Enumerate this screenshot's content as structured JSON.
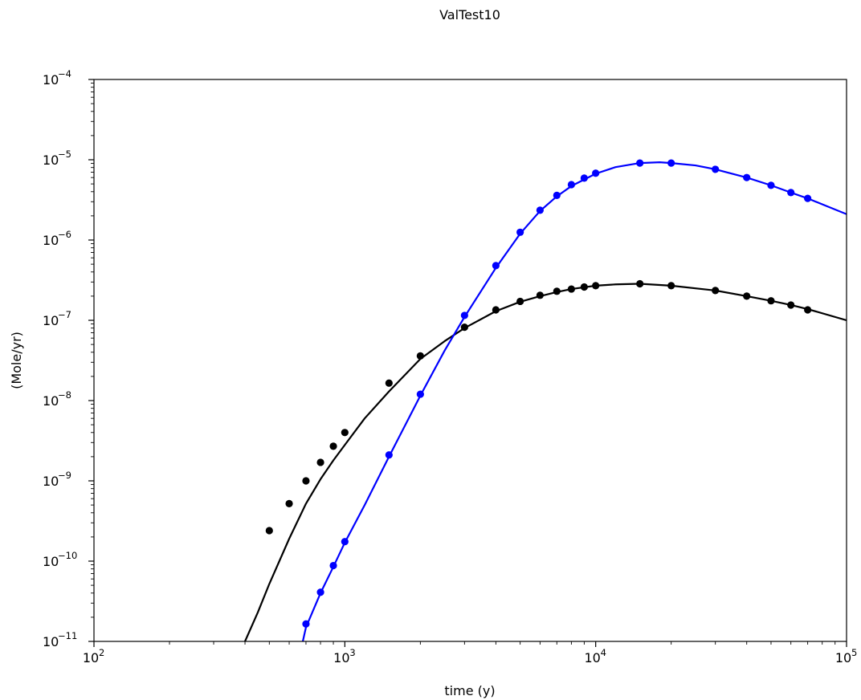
{
  "chart_data": {
    "type": "scatter",
    "title": "ValTest10",
    "xlabel": "time (y)",
    "ylabel": "(Mole/yr)",
    "xscale": "log",
    "yscale": "log",
    "xlim": [
      100,
      100000
    ],
    "ylim": [
      1e-11,
      0.0001
    ],
    "x_ticks": [
      {
        "value": 100,
        "base": "10",
        "exp": "2"
      },
      {
        "value": 1000,
        "base": "10",
        "exp": "3"
      },
      {
        "value": 10000,
        "base": "10",
        "exp": "4"
      },
      {
        "value": 100000,
        "base": "10",
        "exp": "5"
      }
    ],
    "y_ticks": [
      {
        "value": 1e-11,
        "base": "10",
        "exp": "−11"
      },
      {
        "value": 1e-10,
        "base": "10",
        "exp": "−10"
      },
      {
        "value": 1e-09,
        "base": "10",
        "exp": "−9"
      },
      {
        "value": 1e-08,
        "base": "10",
        "exp": "−8"
      },
      {
        "value": 1e-07,
        "base": "10",
        "exp": "−7"
      },
      {
        "value": 1e-06,
        "base": "10",
        "exp": "−6"
      },
      {
        "value": 1e-05,
        "base": "10",
        "exp": "−5"
      },
      {
        "value": 0.0001,
        "base": "10",
        "exp": "−4"
      }
    ],
    "grid": false,
    "series": [
      {
        "color": "#000000",
        "line": {
          "x": [
            400,
            450,
            500,
            600,
            700,
            800,
            900,
            1000,
            1200,
            1500,
            2000,
            2500,
            3000,
            4000,
            5000,
            6000,
            7000,
            8000,
            10000,
            12000,
            15000,
            20000,
            30000,
            40000,
            50000,
            60000,
            70000,
            100000
          ],
          "y": [
            1e-11,
            2.3e-11,
            5.2e-11,
            1.9e-10,
            5.2e-10,
            1.05e-09,
            1.8e-09,
            2.8e-09,
            6e-09,
            1.3e-08,
            3.3e-08,
            5.5e-08,
            8e-08,
            1.3e-07,
            1.7e-07,
            2e-07,
            2.25e-07,
            2.45e-07,
            2.7e-07,
            2.8e-07,
            2.85e-07,
            2.7e-07,
            2.35e-07,
            2e-07,
            1.75e-07,
            1.55e-07,
            1.38e-07,
            1e-07
          ]
        },
        "points": {
          "x": [
            500,
            600,
            700,
            800,
            900,
            1000,
            1500,
            2000,
            3000,
            4000,
            5000,
            6000,
            7000,
            8000,
            9000,
            10000,
            15000,
            20000,
            30000,
            40000,
            50000,
            60000,
            70000
          ],
          "y": [
            2.4e-10,
            5.2e-10,
            1e-09,
            1.7e-09,
            2.7e-09,
            4e-09,
            1.65e-08,
            3.6e-08,
            8.2e-08,
            1.35e-07,
            1.72e-07,
            2.05e-07,
            2.3e-07,
            2.45e-07,
            2.6e-07,
            2.7e-07,
            2.85e-07,
            2.7e-07,
            2.35e-07,
            2e-07,
            1.75e-07,
            1.55e-07,
            1.35e-07
          ]
        }
      },
      {
        "color": "#0000ff",
        "line": {
          "x": [
            680,
            700,
            800,
            900,
            1000,
            1200,
            1500,
            2000,
            2500,
            3000,
            4000,
            5000,
            6000,
            7000,
            8000,
            10000,
            12000,
            15000,
            18000,
            20000,
            25000,
            30000,
            40000,
            50000,
            60000,
            70000,
            100000
          ],
          "y": [
            1e-11,
            1.5e-11,
            4e-11,
            8.5e-11,
            1.7e-10,
            5e-10,
            2e-09,
            1.15e-08,
            4.2e-08,
            1.1e-07,
            4.5e-07,
            1.2e-06,
            2.3e-06,
            3.5e-06,
            4.7e-06,
            6.7e-06,
            8.1e-06,
            9.1e-06,
            9.3e-06,
            9.1e-06,
            8.5e-06,
            7.6e-06,
            6e-06,
            4.8e-06,
            3.9e-06,
            3.3e-06,
            2.1e-06
          ]
        },
        "points": {
          "x": [
            700,
            800,
            900,
            1000,
            1500,
            2000,
            3000,
            4000,
            5000,
            6000,
            7000,
            8000,
            9000,
            10000,
            15000,
            20000,
            30000,
            40000,
            50000,
            60000,
            70000
          ],
          "y": [
            1.65e-11,
            4.1e-11,
            8.8e-11,
            1.75e-10,
            2.1e-09,
            1.2e-08,
            1.15e-07,
            4.8e-07,
            1.25e-06,
            2.35e-06,
            3.6e-06,
            4.9e-06,
            5.9e-06,
            6.8e-06,
            9.1e-06,
            9.1e-06,
            7.6e-06,
            6e-06,
            4.8e-06,
            3.9e-06,
            3.3e-06
          ]
        }
      }
    ]
  }
}
